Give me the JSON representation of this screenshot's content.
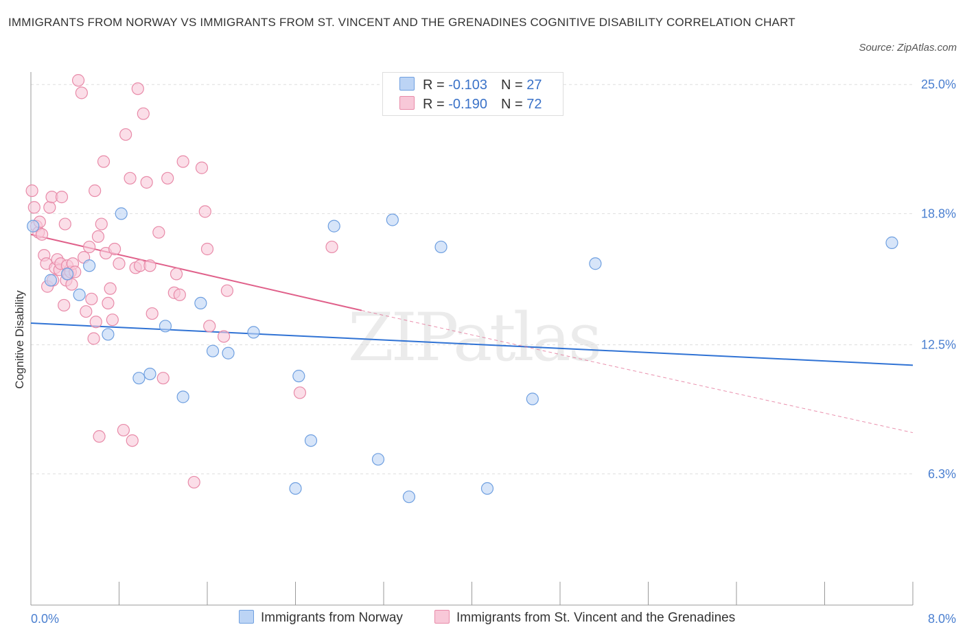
{
  "title": "IMMIGRANTS FROM NORWAY VS IMMIGRANTS FROM ST. VINCENT AND THE GRENADINES COGNITIVE DISABILITY CORRELATION CHART",
  "source": "Source: ZipAtlas.com",
  "watermark": "ZIPatlas",
  "legend": {
    "row1": {
      "r_label": "R = ",
      "r_value": "-0.103",
      "n_label": "N = ",
      "n_value": "27"
    },
    "row2": {
      "r_label": "R = ",
      "r_value": "-0.190",
      "n_label": "N = ",
      "n_value": "72"
    }
  },
  "colors": {
    "norway_fill": "#bcd4f5",
    "norway_stroke": "#6e9fe0",
    "norway_line": "#2f72d4",
    "svg_fill": "#f8c8d8",
    "svg_stroke": "#e88aa8",
    "svg_line": "#e0608a",
    "axis_label": "#4a7fd0",
    "grid": "#dddddd"
  },
  "chart_data": {
    "type": "scatter",
    "title": "IMMIGRANTS FROM NORWAY VS IMMIGRANTS FROM ST. VINCENT AND THE GRENADINES COGNITIVE DISABILITY CORRELATION CHART",
    "xlabel": "",
    "ylabel": "Cognitive Disability",
    "xlim": [
      0,
      8
    ],
    "ylim": [
      0,
      25.6
    ],
    "x_tick_labels": [
      "0.0%",
      "8.0%"
    ],
    "y_tick_labels": [
      "25.0%",
      "18.8%",
      "12.5%",
      "6.3%"
    ],
    "y_ticks": [
      25.0,
      18.8,
      12.5,
      6.3
    ],
    "grid": true,
    "legend_position": "bottom",
    "series": [
      {
        "name": "Immigrants from Norway",
        "color": "#6e9fe0",
        "points": [
          [
            0.02,
            18.2
          ],
          [
            0.18,
            15.6
          ],
          [
            0.33,
            15.9
          ],
          [
            0.44,
            14.9
          ],
          [
            0.53,
            16.3
          ],
          [
            0.7,
            13.0
          ],
          [
            0.82,
            18.8
          ],
          [
            0.98,
            10.9
          ],
          [
            1.08,
            11.1
          ],
          [
            1.22,
            13.4
          ],
          [
            1.38,
            10.0
          ],
          [
            1.54,
            14.5
          ],
          [
            1.65,
            12.2
          ],
          [
            1.79,
            12.1
          ],
          [
            2.02,
            13.1
          ],
          [
            2.4,
            5.6
          ],
          [
            2.43,
            11.0
          ],
          [
            2.54,
            7.9
          ],
          [
            2.75,
            18.2
          ],
          [
            3.15,
            7.0
          ],
          [
            3.28,
            18.5
          ],
          [
            3.43,
            5.2
          ],
          [
            3.72,
            17.2
          ],
          [
            4.14,
            5.6
          ],
          [
            4.55,
            9.9
          ],
          [
            5.12,
            16.4
          ],
          [
            7.81,
            17.4
          ]
        ],
        "trend": {
          "x": [
            0.0,
            8.0
          ],
          "y": [
            13.54,
            11.52
          ]
        }
      },
      {
        "name": "Immigrants from St. Vincent and the Grenadines",
        "color": "#e88aa8",
        "points": [
          [
            0.01,
            19.9
          ],
          [
            0.03,
            19.1
          ],
          [
            0.05,
            18.2
          ],
          [
            0.07,
            17.9
          ],
          [
            0.08,
            18.4
          ],
          [
            0.1,
            17.8
          ],
          [
            0.12,
            16.8
          ],
          [
            0.14,
            16.4
          ],
          [
            0.15,
            15.3
          ],
          [
            0.17,
            19.1
          ],
          [
            0.19,
            19.6
          ],
          [
            0.2,
            15.6
          ],
          [
            0.22,
            16.2
          ],
          [
            0.24,
            16.6
          ],
          [
            0.26,
            16.1
          ],
          [
            0.27,
            16.4
          ],
          [
            0.28,
            19.6
          ],
          [
            0.3,
            14.4
          ],
          [
            0.31,
            18.3
          ],
          [
            0.32,
            15.6
          ],
          [
            0.33,
            16.3
          ],
          [
            0.34,
            15.9
          ],
          [
            0.36,
            16.0
          ],
          [
            0.37,
            15.4
          ],
          [
            0.38,
            16.4
          ],
          [
            0.4,
            16.0
          ],
          [
            0.43,
            25.2
          ],
          [
            0.46,
            24.6
          ],
          [
            0.48,
            16.7
          ],
          [
            0.5,
            14.1
          ],
          [
            0.53,
            17.2
          ],
          [
            0.55,
            14.7
          ],
          [
            0.57,
            12.8
          ],
          [
            0.58,
            19.9
          ],
          [
            0.59,
            13.6
          ],
          [
            0.61,
            17.7
          ],
          [
            0.62,
            8.1
          ],
          [
            0.64,
            18.3
          ],
          [
            0.66,
            21.3
          ],
          [
            0.68,
            16.9
          ],
          [
            0.7,
            14.5
          ],
          [
            0.72,
            15.2
          ],
          [
            0.74,
            13.7
          ],
          [
            0.76,
            17.1
          ],
          [
            0.8,
            16.4
          ],
          [
            0.84,
            8.4
          ],
          [
            0.86,
            22.6
          ],
          [
            0.9,
            20.5
          ],
          [
            0.92,
            7.9
          ],
          [
            0.95,
            16.2
          ],
          [
            0.97,
            24.8
          ],
          [
            0.99,
            16.3
          ],
          [
            1.02,
            23.6
          ],
          [
            1.05,
            20.3
          ],
          [
            1.08,
            16.3
          ],
          [
            1.1,
            14.0
          ],
          [
            1.16,
            17.9
          ],
          [
            1.2,
            10.9
          ],
          [
            1.24,
            20.5
          ],
          [
            1.3,
            15.0
          ],
          [
            1.32,
            15.9
          ],
          [
            1.35,
            14.9
          ],
          [
            1.38,
            21.3
          ],
          [
            1.48,
            5.9
          ],
          [
            1.55,
            21.0
          ],
          [
            1.58,
            18.9
          ],
          [
            1.6,
            17.1
          ],
          [
            1.62,
            13.4
          ],
          [
            1.75,
            12.9
          ],
          [
            1.78,
            15.1
          ],
          [
            2.44,
            10.2
          ],
          [
            2.73,
            17.2
          ]
        ],
        "trend": {
          "x": [
            0.0,
            3.0
          ],
          "y": [
            17.8,
            14.15
          ],
          "dashed_extension": {
            "x": [
              3.0,
              8.0
            ],
            "y": [
              14.15,
              8.28
            ]
          }
        }
      }
    ]
  }
}
